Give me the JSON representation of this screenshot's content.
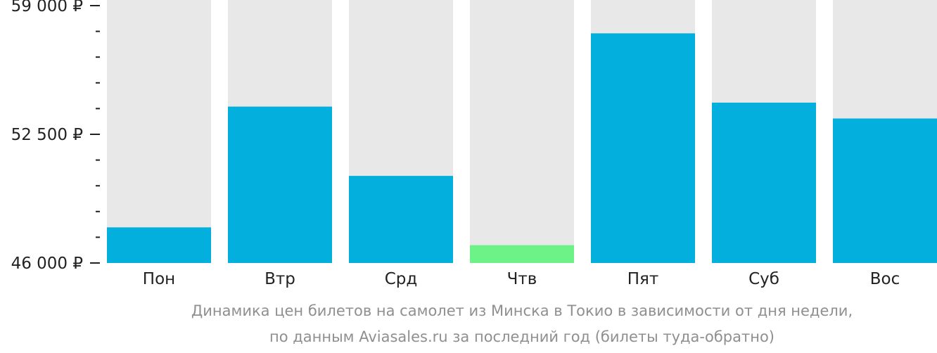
{
  "chart_data": {
    "type": "bar",
    "categories": [
      "Пон",
      "Втр",
      "Срд",
      "Чтв",
      "Пят",
      "Суб",
      "Вос"
    ],
    "values": [
      47800,
      53900,
      50400,
      46900,
      57600,
      54100,
      53300
    ],
    "ylim": [
      46000,
      59000
    ],
    "yticks": [
      {
        "value": 59000,
        "label": "59 000 ₽"
      },
      {
        "value": 52500,
        "label": "52 500 ₽"
      },
      {
        "value": 46000,
        "label": "46 000 ₽"
      }
    ],
    "minor_tick_step": 1300,
    "highlight_index": 3,
    "colors": {
      "bar": "#03afdc",
      "highlight": "#6cf286",
      "background_bar": "#e8e8e8",
      "axis_text": "#222222"
    }
  },
  "caption": {
    "line1": "Динамика цен билетов на самолет из Минска в Токио в зависимости от дня недели,",
    "line2": "по данным Aviasales.ru за последний год (билеты туда-обратно)"
  }
}
